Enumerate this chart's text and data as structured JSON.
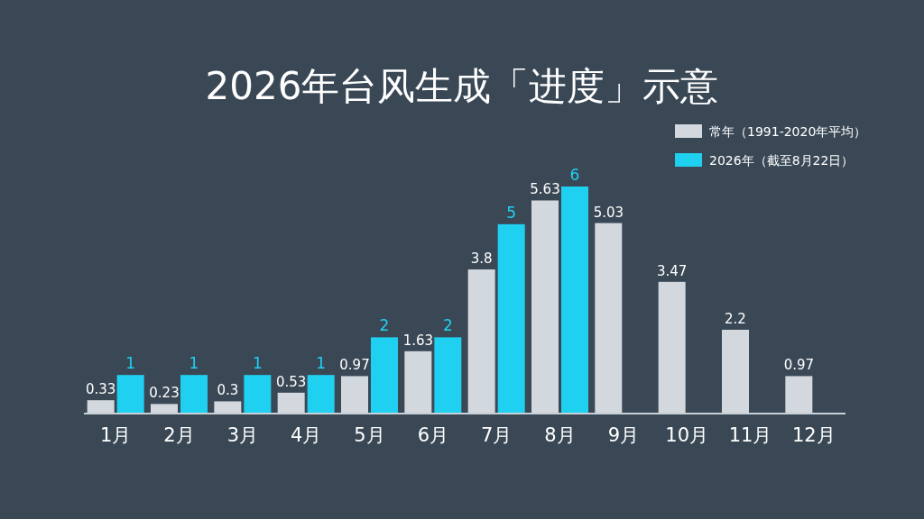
{
  "chart_data": {
    "type": "bar",
    "title": "2026年台风生成「进度」示意",
    "categories": [
      "1月",
      "2月",
      "3月",
      "4月",
      "5月",
      "6月",
      "7月",
      "8月",
      "9月",
      "10月",
      "11月",
      "12月"
    ],
    "series": [
      {
        "name": "常年（1991-2020年平均）",
        "color": "#d3d8df",
        "values": [
          0.33,
          0.23,
          0.3,
          0.53,
          0.97,
          1.63,
          3.8,
          5.63,
          5.03,
          3.47,
          2.2,
          0.97
        ]
      },
      {
        "name": "2026年（截至8月22日）",
        "color": "#1fd0f0",
        "values": [
          1,
          1,
          1,
          1,
          2,
          2,
          5,
          6,
          null,
          null,
          null,
          null
        ]
      }
    ],
    "data_labels": true,
    "legend": "top right",
    "grid": false
  }
}
